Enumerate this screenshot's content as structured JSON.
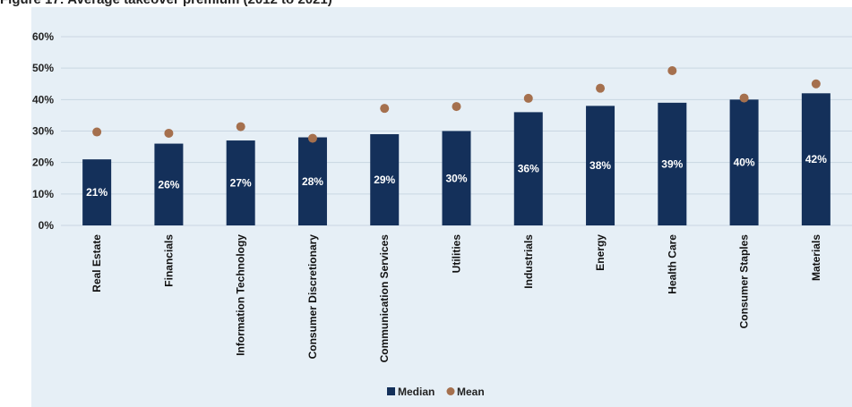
{
  "figure_title": "Figure 17: Average takeover premium (2012 to 2021)",
  "colors": {
    "panel": "#e6eff6",
    "median": "#14305a",
    "mean": "#a5704e",
    "grid": "#c9d6e2"
  },
  "chart_data": {
    "type": "bar",
    "title": "Figure 17: Average takeover premium (2012 to 2021)",
    "xlabel": "",
    "ylabel": "",
    "ylim": [
      0,
      60
    ],
    "yticks": [
      "0%",
      "10%",
      "20%",
      "30%",
      "40%",
      "50%",
      "60%"
    ],
    "grid": true,
    "legend_position": "bottom",
    "categories": [
      "Real Estate",
      "Financials",
      "Information Technology",
      "Consumer Discretionary",
      "Communication Services",
      "Utilities",
      "Industrials",
      "Energy",
      "Health Care",
      "Consumer Staples",
      "Materials"
    ],
    "series": [
      {
        "name": "Median",
        "kind": "bar",
        "values": [
          21,
          26,
          27,
          28,
          29,
          30,
          36,
          38,
          39,
          40,
          42
        ],
        "labels": [
          "21%",
          "26%",
          "27%",
          "28%",
          "29%",
          "30%",
          "36%",
          "38%",
          "39%",
          "40%",
          "42%"
        ]
      },
      {
        "name": "Mean",
        "kind": "marker",
        "values": [
          29.7,
          29.3,
          31.4,
          27.7,
          37.2,
          37.8,
          40.4,
          43.6,
          49.2,
          40.5,
          45
        ]
      }
    ]
  }
}
